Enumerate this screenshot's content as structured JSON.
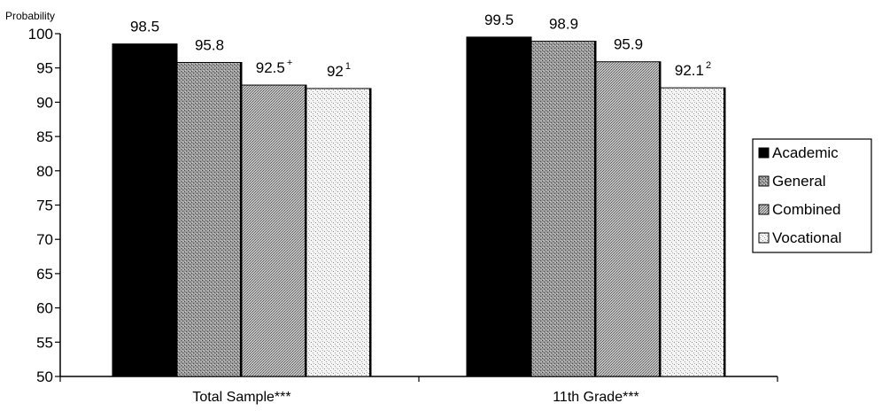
{
  "chart_data": {
    "type": "bar",
    "ylabel": "Probability",
    "xlabel": "",
    "title": "",
    "ylim": [
      50,
      100
    ],
    "y_ticks": [
      50,
      55,
      60,
      65,
      70,
      75,
      80,
      85,
      90,
      95,
      100
    ],
    "categories": [
      "Total Sample***",
      "11th Grade***"
    ],
    "series": [
      {
        "name": "Academic",
        "values": [
          98.5,
          99.5
        ],
        "labels": [
          "98.5",
          "99.5"
        ],
        "sup": [
          "",
          ""
        ],
        "color": "#000000"
      },
      {
        "name": "General",
        "values": [
          95.8,
          98.9
        ],
        "labels": [
          "95.8",
          "98.9"
        ],
        "sup": [
          "",
          ""
        ],
        "color": "#8a8a8a"
      },
      {
        "name": "Combined",
        "values": [
          92.5,
          95.9
        ],
        "labels": [
          "92.5",
          "95.9"
        ],
        "sup": [
          "+",
          ""
        ],
        "color": "#a6a6a6"
      },
      {
        "name": "Vocational",
        "values": [
          92,
          92.1
        ],
        "labels": [
          "92",
          "92.1"
        ],
        "sup": [
          "1",
          "2"
        ],
        "color": "#e4e4e4"
      }
    ],
    "legend_position": "right",
    "grid": false
  }
}
